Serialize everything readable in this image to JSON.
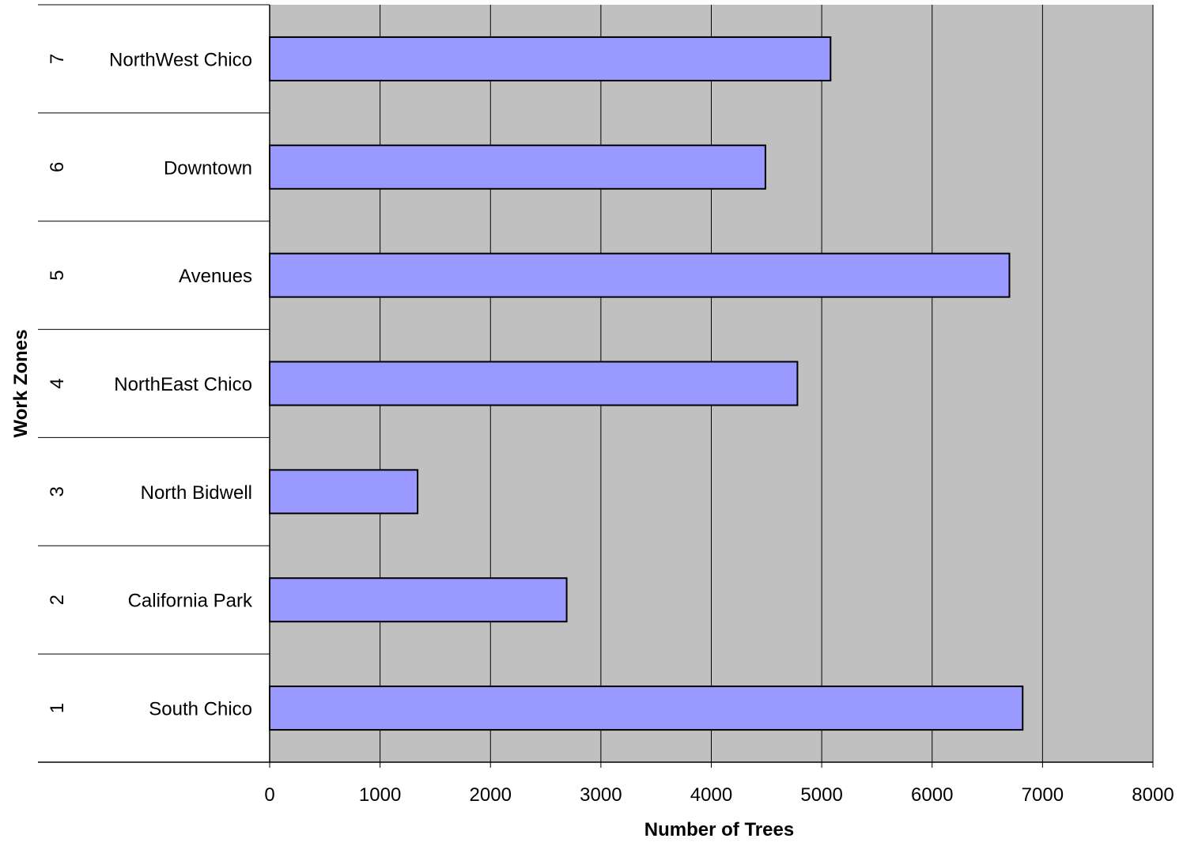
{
  "chart_data": {
    "type": "bar",
    "orientation": "horizontal",
    "xlabel": "Number of Trees",
    "ylabel": "Work Zones",
    "xlim": [
      0,
      8000
    ],
    "x_ticks": [
      "0",
      "1000",
      "2000",
      "3000",
      "4000",
      "5000",
      "6000",
      "7000",
      "8000"
    ],
    "grid": true,
    "legend": "none",
    "categories": [
      {
        "zone": "1",
        "name": "South Chico"
      },
      {
        "zone": "2",
        "name": "California Park"
      },
      {
        "zone": "3",
        "name": "North Bidwell"
      },
      {
        "zone": "4",
        "name": "NorthEast Chico"
      },
      {
        "zone": "5",
        "name": "Avenues"
      },
      {
        "zone": "6",
        "name": "Downtown"
      },
      {
        "zone": "7",
        "name": "NorthWest Chico"
      }
    ],
    "values": [
      6820,
      2690,
      1340,
      4780,
      6700,
      4490,
      5080
    ],
    "colors": {
      "bar_fill": "#9999ff",
      "bar_stroke": "#000000",
      "plot_background": "#c0c0c0",
      "gridline": "#000000"
    }
  }
}
